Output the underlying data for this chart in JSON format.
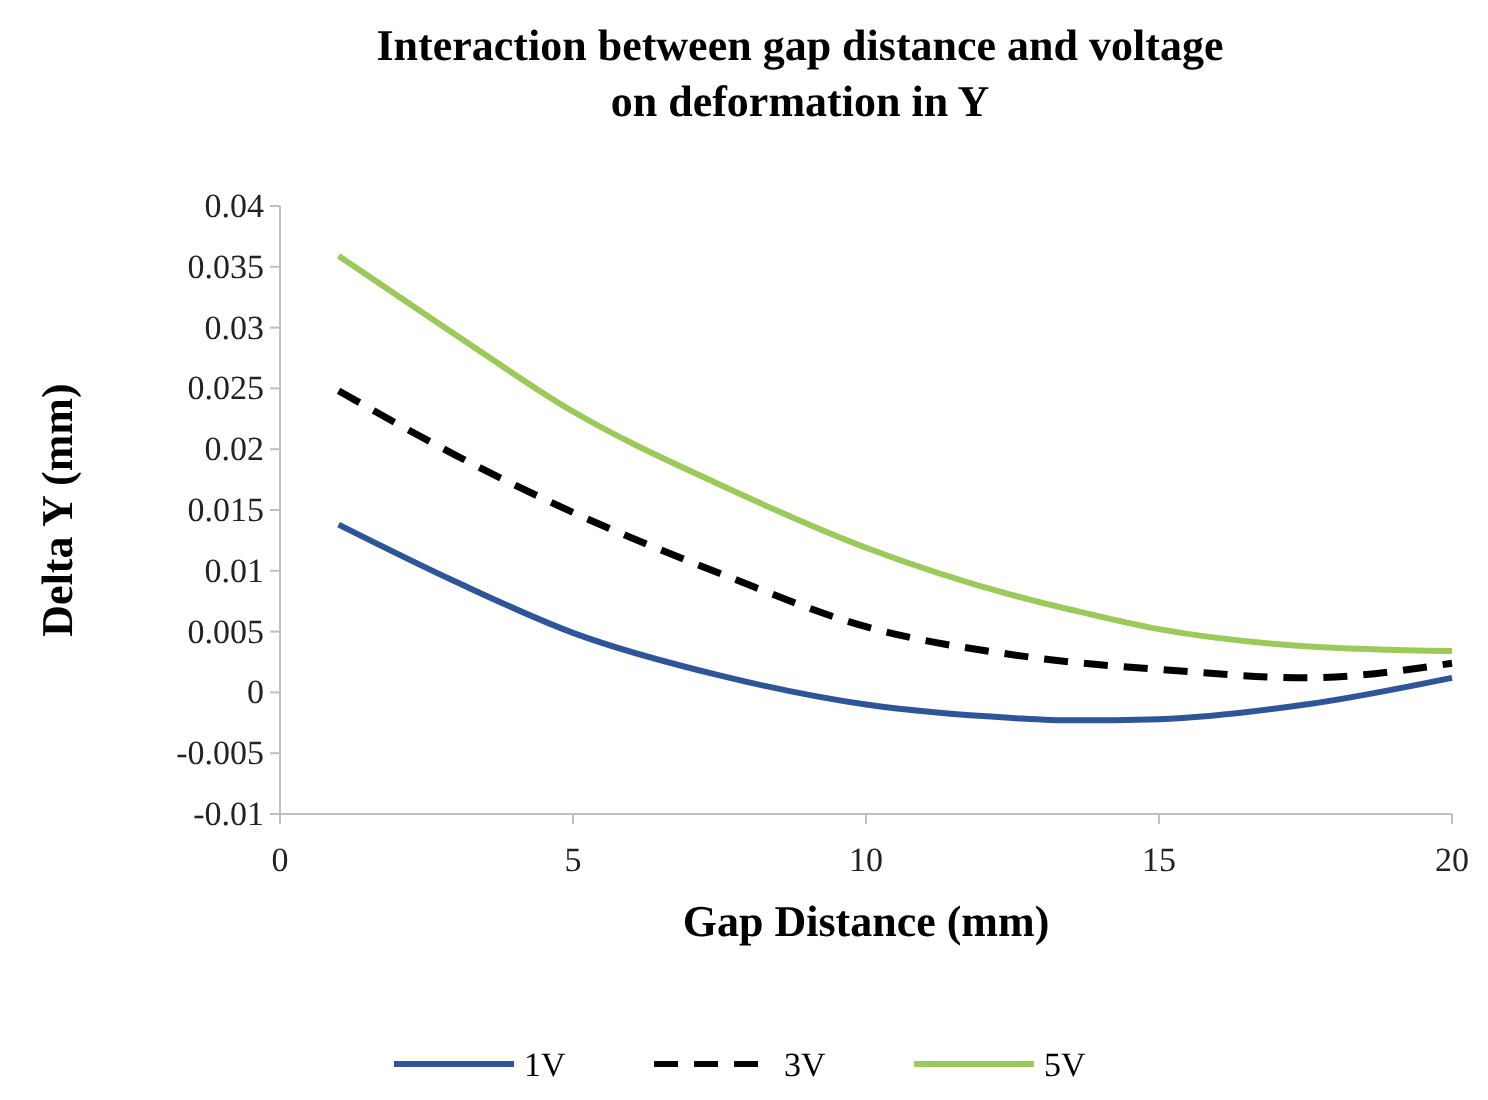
{
  "chart_data": {
    "type": "line",
    "title": "Interaction between gap distance and voltage on deformation in Y",
    "xlabel": "Gap Distance (mm)",
    "ylabel": "Delta Y (mm)",
    "x": [
      1,
      3,
      5,
      7.5,
      10,
      12.5,
      13.5,
      15,
      17.5,
      20
    ],
    "series": [
      {
        "name": "1V",
        "color": "#2e5597",
        "line_style": "solid",
        "values": [
          0.0138,
          0.0091,
          0.0049,
          0.0014,
          -0.001,
          -0.0021,
          -0.0023,
          -0.0022,
          -0.001,
          0.0012
        ]
      },
      {
        "name": "3V",
        "color": "#000000",
        "line_style": "dashed",
        "values": [
          0.0248,
          0.0195,
          0.0148,
          0.0098,
          0.0054,
          0.0031,
          0.0025,
          0.0019,
          0.0012,
          0.0024
        ]
      },
      {
        "name": "5V",
        "color": "#9bc95a",
        "line_style": "solid",
        "values": [
          0.0359,
          0.0294,
          0.0231,
          0.0171,
          0.0119,
          0.008,
          0.0068,
          0.0052,
          0.0038,
          0.0034
        ]
      }
    ],
    "xlim": [
      0,
      20
    ],
    "xticks": [
      0,
      5,
      10,
      15,
      20
    ],
    "ylim": [
      -0.01,
      0.04
    ],
    "yticks": [
      -0.01,
      -0.005,
      0,
      0.005,
      0.01,
      0.015,
      0.02,
      0.025,
      0.03,
      0.035,
      0.04
    ],
    "grid": false,
    "legend": "bottom",
    "marker": "none"
  }
}
